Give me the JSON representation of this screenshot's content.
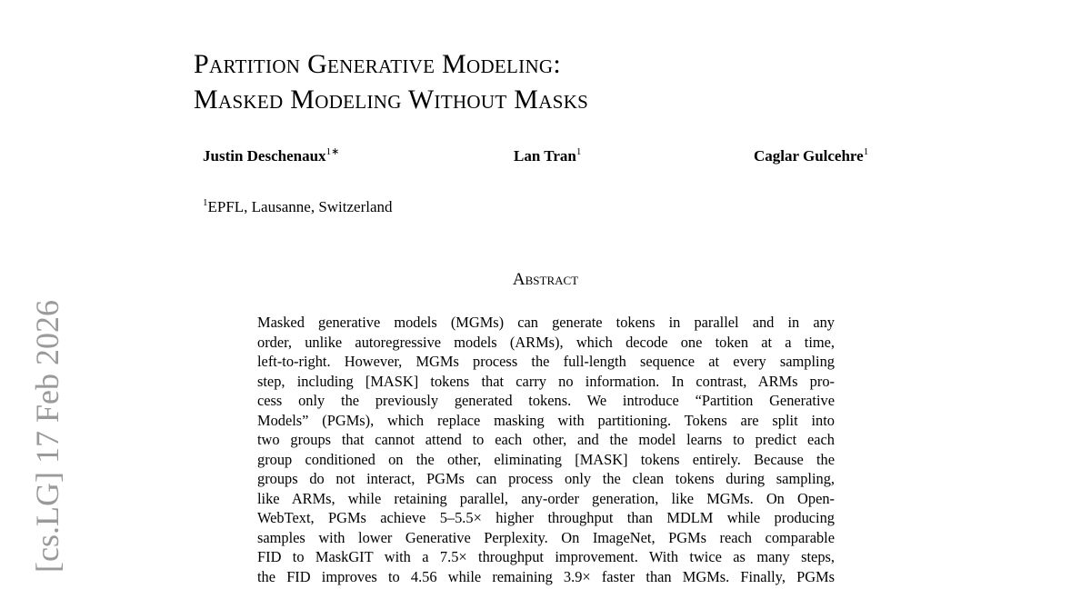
{
  "side_stamp": "[cs.LG] 17 Feb 2026",
  "title": {
    "lines": [
      "Partition Generative Modeling:",
      "Masked Modeling Without Masks"
    ]
  },
  "authors": [
    {
      "name": "Justin Deschenaux",
      "affil": "1∗"
    },
    {
      "name": "Lan Tran",
      "affil": "1"
    },
    {
      "name": "Caglar Gulcehre",
      "affil": "1"
    }
  ],
  "affiliation": {
    "mark": "1",
    "text": "EPFL, Lausanne, Switzerland"
  },
  "abstract": {
    "heading": "Abstract",
    "lines": [
      "Masked generative models (MGMs) can generate tokens in parallel and in any",
      "order, unlike autoregressive models (ARMs), which decode one token at a time,",
      "left-to-right. However, MGMs process the full-length sequence at every sampling",
      "step, including [MASK] tokens that carry no information. In contrast, ARMs pro-",
      "cess only the previously generated tokens. We introduce “Partition Generative",
      "Models” (PGMs), which replace masking with partitioning. Tokens are split into",
      "two groups that cannot attend to each other, and the model learns to predict each",
      "group conditioned on the other, eliminating [MASK] tokens entirely. Because the",
      "groups do not interact, PGMs can process only the clean tokens during sampling,",
      "like ARMs, while retaining parallel, any-order generation, like MGMs. On Open-",
      "WebText, PGMs achieve 5–5.5× higher throughput than MDLM while producing",
      "samples with lower Generative Perplexity. On ImageNet, PGMs reach comparable",
      "FID to MaskGIT with a 7.5× throughput improvement. With twice as many steps,",
      "the FID improves to 4.56 while remaining 3.9× faster than MGMs. Finally, PGMs"
    ]
  }
}
